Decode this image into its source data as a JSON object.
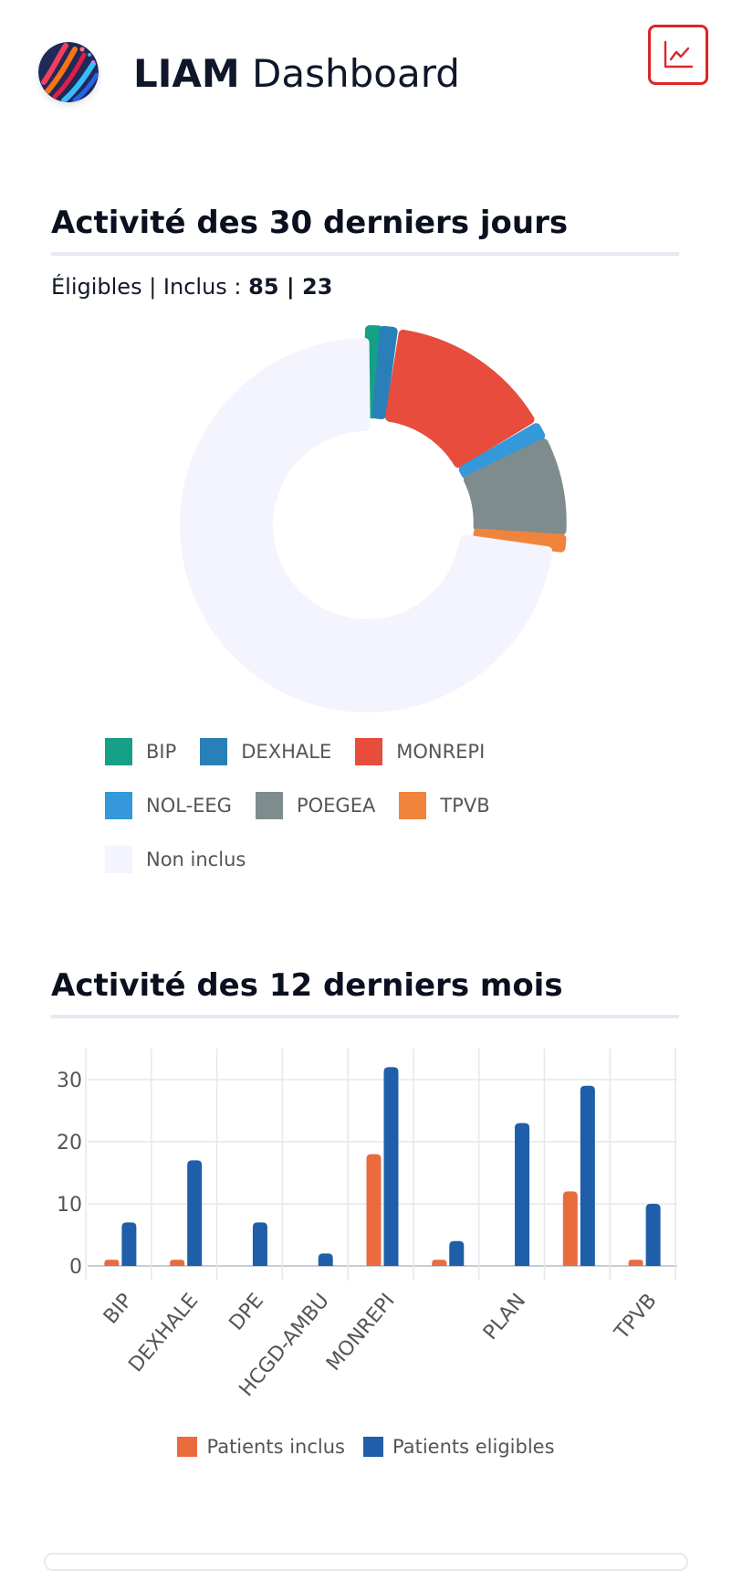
{
  "header": {
    "title_strong": "LIAM",
    "title_rest": " Dashboard",
    "chart_button_icon": "line-chart-icon",
    "accent": "#dc2626"
  },
  "monthly_section": {
    "title": "Activité des 30 derniers jours",
    "stats_label": "Éligibles | Inclus : ",
    "stats_value": "85 | 23"
  },
  "yearly_section": {
    "title": "Activité des 12 derniers mois"
  },
  "chart_data": [
    {
      "type": "pie",
      "title": "Activité des 30 derniers jours",
      "donut": true,
      "categories": [
        "BIP",
        "DEXHALE",
        "MONREPI",
        "NOL-EEG",
        "POEGEA",
        "TPVB",
        "Non inclus"
      ],
      "values": [
        1,
        1,
        12,
        1,
        7,
        1,
        62
      ],
      "colors": [
        "#16a085",
        "#2980b9",
        "#e74c3c",
        "#3498db",
        "#7f8c8d",
        "#f0843c",
        "#f3f4fd"
      ],
      "legend": "bottom"
    },
    {
      "type": "bar",
      "title": "Activité des 12 derniers mois",
      "categories": [
        "BIP",
        "DEXHALE",
        "DPE",
        "HCGD-AMBU",
        "MONREPI",
        "",
        "PLAN",
        "",
        "TPVB"
      ],
      "series": [
        {
          "name": "Patients inclus",
          "color": "#ea6b3d",
          "values": [
            1,
            1,
            0,
            0,
            18,
            1,
            0,
            12,
            1
          ]
        },
        {
          "name": "Patients eligibles",
          "color": "#1f5ea8",
          "values": [
            7,
            17,
            7,
            2,
            32,
            4,
            23,
            29,
            10
          ]
        }
      ],
      "yticks": [
        0,
        10,
        20,
        30
      ],
      "ylim": [
        0,
        35
      ],
      "grid": true,
      "legend": "bottom"
    }
  ]
}
